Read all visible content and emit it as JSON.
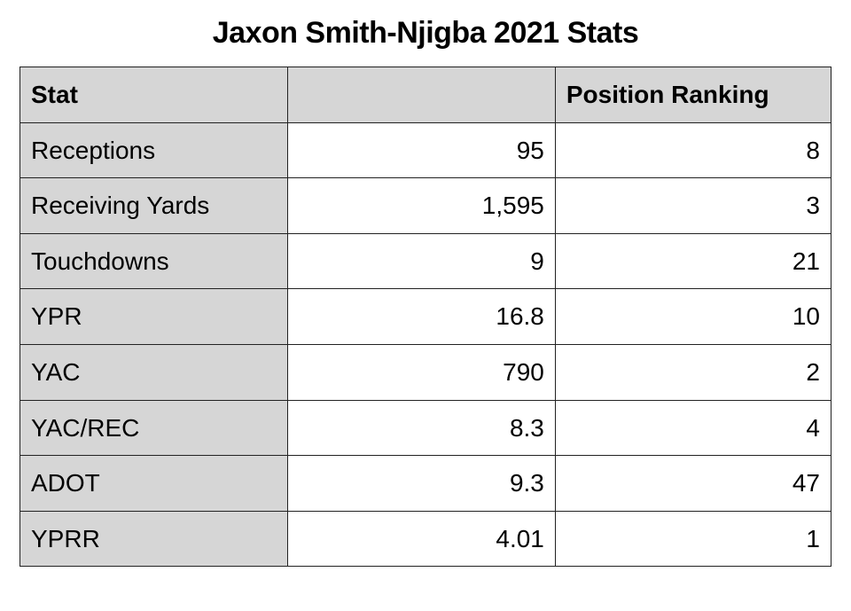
{
  "title": "Jaxon Smith-Njigba 2021 Stats",
  "table": {
    "columns": {
      "stat": "Stat",
      "value": "",
      "rank": "Position Ranking"
    },
    "rows": [
      {
        "stat": "Receptions",
        "value": "95",
        "rank": "8"
      },
      {
        "stat": "Receiving Yards",
        "value": "1,595",
        "rank": "3"
      },
      {
        "stat": "Touchdowns",
        "value": "9",
        "rank": "21"
      },
      {
        "stat": "YPR",
        "value": "16.8",
        "rank": "10"
      },
      {
        "stat": "YAC",
        "value": "790",
        "rank": "2"
      },
      {
        "stat": "YAC/REC",
        "value": "8.3",
        "rank": "4"
      },
      {
        "stat": "ADOT",
        "value": "9.3",
        "rank": "47"
      },
      {
        "stat": "YPRR",
        "value": "4.01",
        "rank": "1"
      }
    ],
    "styling": {
      "type": "table",
      "header_bg": "#d6d6d6",
      "stat_col_bg": "#d6d6d6",
      "data_bg": "#ffffff",
      "border_color": "#222222",
      "text_color": "#000000",
      "font_family": "Helvetica Neue, Arial, sans-serif",
      "header_fontsize_pt": 21,
      "cell_fontsize_pt": 21,
      "header_fontweight": 700,
      "cell_fontweight": 400,
      "col_widths_pct": [
        33,
        33,
        34
      ],
      "alignment": {
        "stat": "left",
        "value": "right",
        "rank": "right"
      },
      "title_fontsize_pt": 26,
      "title_fontweight": 700,
      "title_align": "center"
    }
  }
}
